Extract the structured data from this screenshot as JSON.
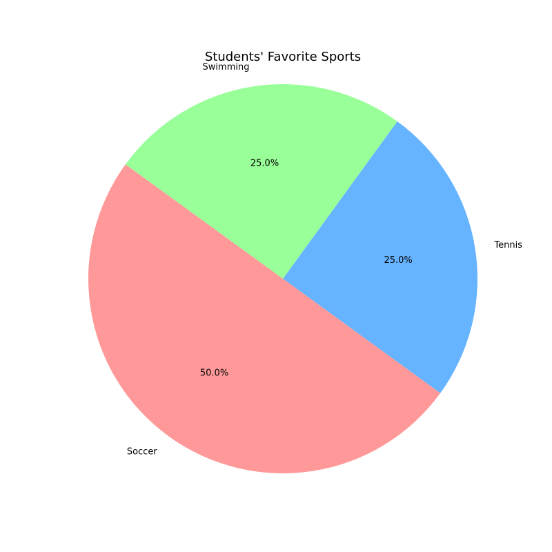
{
  "chart_data": {
    "type": "pie",
    "title": "Students' Favorite Sports",
    "slices": [
      {
        "label": "Tennis",
        "value": 25.0,
        "pct_label": "25.0%",
        "color": "#66b3ff"
      },
      {
        "label": "Swimming",
        "value": 25.0,
        "pct_label": "25.0%",
        "color": "#99ff99"
      },
      {
        "label": "Soccer",
        "value": 50.0,
        "pct_label": "50.0%",
        "color": "#ff9999"
      }
    ],
    "start_angle_deg": -36,
    "direction": "counterclockwise",
    "legend": "none"
  }
}
